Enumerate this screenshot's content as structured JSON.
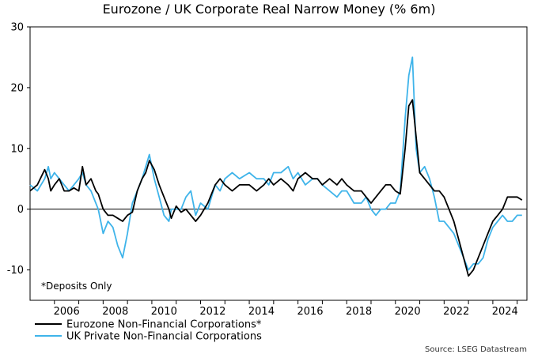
{
  "chart_data": {
    "type": "line",
    "title": "Eurozone / UK Corporate Real Narrow Money (% 6m)",
    "xlabel": "",
    "ylabel": "",
    "xlim": [
      2005.0,
      2025.4
    ],
    "ylim": [
      -15,
      30
    ],
    "x_ticks": [
      "2006",
      "2008",
      "2010",
      "2012",
      "2014",
      "2016",
      "2018",
      "2020",
      "2022",
      "2024"
    ],
    "y_ticks": [
      "30",
      "20",
      "10",
      "0",
      "-10"
    ],
    "grid": false,
    "zero_line": true,
    "legend_position": "bottom-left",
    "annotation": "*Deposits Only",
    "source": "Source: LSEG Datastream",
    "series": [
      {
        "name": "Eurozone Non-Financial Corporations*",
        "color": "#000000",
        "x": [
          2005.0,
          2005.3,
          2005.6,
          2005.75,
          2005.85,
          2006.0,
          2006.2,
          2006.4,
          2006.6,
          2006.8,
          2007.0,
          2007.15,
          2007.3,
          2007.5,
          2007.7,
          2007.8,
          2008.0,
          2008.2,
          2008.4,
          2008.6,
          2008.8,
          2009.0,
          2009.2,
          2009.4,
          2009.6,
          2009.75,
          2009.9,
          2010.1,
          2010.3,
          2010.5,
          2010.7,
          2010.8,
          2011.0,
          2011.2,
          2011.4,
          2011.6,
          2011.8,
          2012.0,
          2012.3,
          2012.6,
          2012.8,
          2013.0,
          2013.3,
          2013.6,
          2014.0,
          2014.3,
          2014.6,
          2014.8,
          2015.0,
          2015.3,
          2015.6,
          2015.8,
          2016.0,
          2016.3,
          2016.6,
          2016.8,
          2017.0,
          2017.3,
          2017.6,
          2017.8,
          2018.0,
          2018.3,
          2018.6,
          2018.8,
          2019.0,
          2019.2,
          2019.4,
          2019.6,
          2019.8,
          2020.0,
          2020.2,
          2020.4,
          2020.55,
          2020.7,
          2020.85,
          2021.0,
          2021.2,
          2021.4,
          2021.6,
          2021.8,
          2022.0,
          2022.2,
          2022.4,
          2022.6,
          2022.8,
          2023.0,
          2023.2,
          2023.4,
          2023.6,
          2023.8,
          2024.0,
          2024.2,
          2024.4,
          2024.6,
          2024.8,
          2025.0,
          2025.2
        ],
        "values": [
          3,
          4,
          6.5,
          5,
          3,
          4,
          5,
          3,
          3,
          3.5,
          3,
          7,
          4,
          5,
          3,
          2.5,
          0,
          -1,
          -1,
          -1.5,
          -2,
          -1,
          -0.5,
          3,
          5,
          6,
          8,
          6.5,
          4,
          2,
          0,
          -1.5,
          0.5,
          -0.5,
          0,
          -1,
          -2,
          -1,
          1,
          4,
          5,
          4,
          3,
          4,
          4,
          3,
          4,
          5,
          4,
          5,
          4,
          3,
          5,
          6,
          5,
          5,
          4,
          5,
          4,
          5,
          4,
          3,
          3,
          2,
          1,
          2,
          3,
          4,
          4,
          3,
          2.5,
          10,
          17,
          18,
          12,
          6,
          5,
          4,
          3,
          3,
          2,
          0,
          -2,
          -5,
          -8,
          -11,
          -10,
          -8,
          -6,
          -4,
          -2,
          -1,
          0,
          2,
          2,
          2,
          1.5
        ]
      },
      {
        "name": "UK Private Non-Financial Corporations",
        "color": "#3fb4ea",
        "x": [
          2005.0,
          2005.3,
          2005.6,
          2005.75,
          2005.85,
          2006.0,
          2006.2,
          2006.4,
          2006.6,
          2006.8,
          2007.0,
          2007.15,
          2007.3,
          2007.5,
          2007.7,
          2007.8,
          2008.0,
          2008.2,
          2008.4,
          2008.6,
          2008.8,
          2009.0,
          2009.2,
          2009.4,
          2009.6,
          2009.75,
          2009.9,
          2010.1,
          2010.3,
          2010.5,
          2010.7,
          2010.8,
          2011.0,
          2011.2,
          2011.4,
          2011.6,
          2011.8,
          2012.0,
          2012.3,
          2012.6,
          2012.8,
          2013.0,
          2013.3,
          2013.6,
          2014.0,
          2014.3,
          2014.6,
          2014.8,
          2015.0,
          2015.3,
          2015.6,
          2015.8,
          2016.0,
          2016.3,
          2016.6,
          2016.8,
          2017.0,
          2017.3,
          2017.6,
          2017.8,
          2018.0,
          2018.3,
          2018.6,
          2018.8,
          2019.0,
          2019.2,
          2019.4,
          2019.6,
          2019.8,
          2020.0,
          2020.2,
          2020.4,
          2020.55,
          2020.7,
          2020.85,
          2021.0,
          2021.2,
          2021.4,
          2021.6,
          2021.8,
          2022.0,
          2022.2,
          2022.4,
          2022.6,
          2022.8,
          2023.0,
          2023.2,
          2023.4,
          2023.6,
          2023.8,
          2024.0,
          2024.2,
          2024.4,
          2024.6,
          2024.8,
          2025.0,
          2025.2
        ],
        "values": [
          4,
          3,
          5,
          7,
          5,
          6,
          5,
          4,
          3,
          4,
          5,
          6,
          4,
          3,
          1,
          0,
          -4,
          -2,
          -3,
          -6,
          -8,
          -4,
          1,
          3,
          5,
          7,
          9,
          5,
          2,
          -1,
          -2,
          0,
          0,
          0,
          2,
          3,
          -1,
          1,
          0,
          4,
          3,
          5,
          6,
          5,
          6,
          5,
          5,
          4,
          6,
          6,
          7,
          5,
          6,
          4,
          5,
          5,
          4,
          3,
          2,
          3,
          3,
          1,
          1,
          2,
          0,
          -1,
          0,
          0,
          1,
          1,
          3,
          15,
          22,
          25,
          10,
          6,
          7,
          5,
          2,
          -2,
          -2,
          -3,
          -4,
          -6,
          -8,
          -10,
          -9,
          -9,
          -8,
          -5,
          -3,
          -2,
          -1,
          -2,
          -2,
          -1,
          -1
        ]
      }
    ]
  }
}
